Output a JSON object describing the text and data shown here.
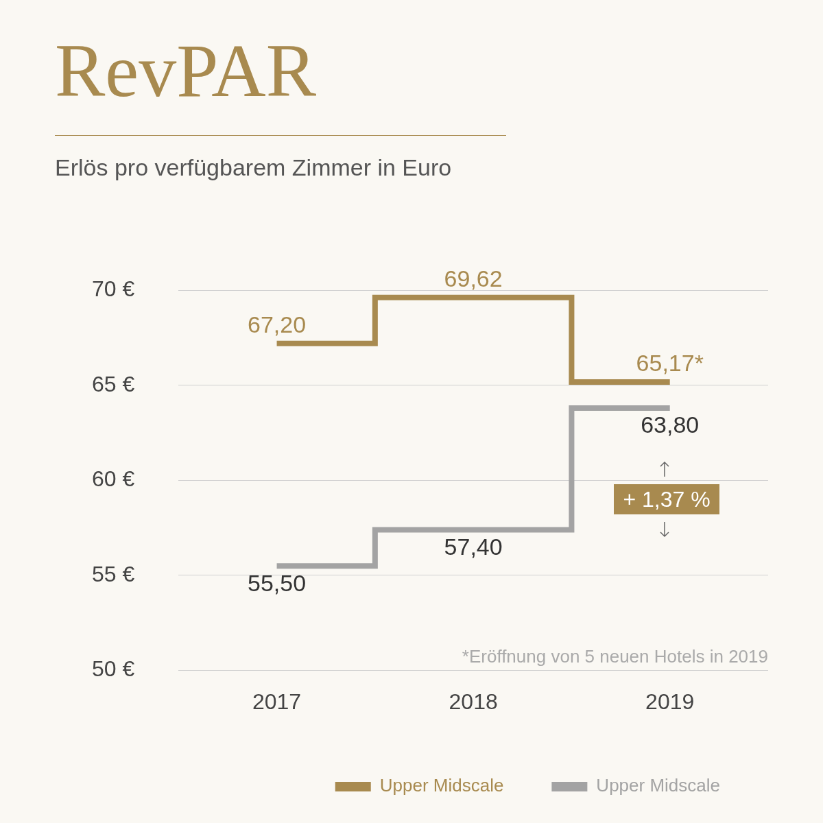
{
  "chart_data": {
    "type": "step",
    "title": "RevPAR",
    "subtitle": "Erlös pro verfügbarem Zimmer in Euro",
    "categories": [
      "2017",
      "2018",
      "2019"
    ],
    "series": [
      {
        "name": "Upper Midscale",
        "color": "#a88a4f",
        "values": [
          67.2,
          69.62,
          65.17
        ],
        "value_labels": [
          "67,20",
          "69,62",
          "65,17*"
        ]
      },
      {
        "name": "Upper Midscale",
        "color": "#a3a3a3",
        "values": [
          55.5,
          57.4,
          63.8
        ],
        "value_labels": [
          "55,50",
          "57,40",
          "63,80"
        ]
      }
    ],
    "ylim": [
      50,
      70
    ],
    "yticks": [
      {
        "value": 50,
        "label": "50 €"
      },
      {
        "value": 55,
        "label": "55 €"
      },
      {
        "value": 60,
        "label": "60 €"
      },
      {
        "value": 65,
        "label": "65 €"
      },
      {
        "value": 70,
        "label": "70 €"
      }
    ],
    "grid": "y",
    "legend": "bottom right",
    "marker": "none",
    "line_style": "solid",
    "annotations": [
      "+ 1,37 %",
      "*Eröffnung von 5 neuen Hotels in 2019"
    ]
  }
}
